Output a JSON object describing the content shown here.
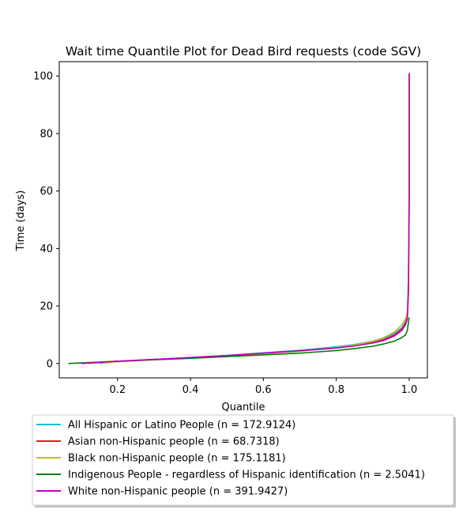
{
  "chart_data": {
    "type": "line",
    "title": "Wait time Quantile Plot for Dead Bird  requests (code SGV)",
    "xlabel": "Quantile",
    "ylabel": "Time (days)",
    "xlim": [
      0.04,
      1.05
    ],
    "ylim": [
      -5,
      105
    ],
    "xticks": [
      0.2,
      0.4,
      0.6,
      0.8,
      1.0
    ],
    "xtick_labels": [
      "0.2",
      "0.4",
      "0.6",
      "0.8",
      "1.0"
    ],
    "yticks": [
      0,
      20,
      40,
      60,
      80,
      100
    ],
    "ytick_labels": [
      "0",
      "20",
      "40",
      "60",
      "80",
      "100"
    ],
    "grid": false,
    "legend_position": "below",
    "series": [
      {
        "name": "All Hispanic or Latino People (n = 172.9124)",
        "color": "#17becf",
        "x": [
          0.15,
          0.2,
          0.3,
          0.4,
          0.5,
          0.6,
          0.7,
          0.8,
          0.85,
          0.9,
          0.93,
          0.96,
          0.98,
          0.99,
          0.995,
          0.998,
          1.0,
          1.0
        ],
        "y": [
          0,
          0.7,
          1.4,
          2.0,
          2.8,
          3.7,
          4.6,
          5.8,
          6.6,
          7.8,
          8.8,
          10.5,
          12.5,
          14.5,
          17,
          30,
          60,
          101
        ]
      },
      {
        "name": "Asian non-Hispanic people (n = 68.7318)",
        "color": "#e41a1c",
        "x": [
          0.1,
          0.2,
          0.3,
          0.4,
          0.5,
          0.6,
          0.7,
          0.8,
          0.85,
          0.9,
          0.93,
          0.96,
          0.98,
          0.99,
          0.995,
          0.998,
          1.0,
          1.0
        ],
        "y": [
          0,
          0.8,
          1.4,
          2.0,
          2.7,
          3.5,
          4.4,
          5.4,
          6.2,
          7.3,
          8.3,
          10.0,
          12.0,
          14.0,
          16,
          25,
          55,
          101
        ]
      },
      {
        "name": "Black non-Hispanic people (n = 175.1181)",
        "color": "#bcbd22",
        "x": [
          0.12,
          0.2,
          0.3,
          0.4,
          0.5,
          0.6,
          0.7,
          0.8,
          0.85,
          0.9,
          0.93,
          0.96,
          0.98,
          0.99,
          0.995,
          0.998,
          1.0,
          1.0
        ],
        "y": [
          0,
          0.6,
          1.3,
          1.9,
          2.6,
          3.4,
          4.3,
          5.5,
          6.4,
          7.7,
          9.0,
          11.0,
          13.5,
          15.5,
          18,
          30,
          60,
          101
        ]
      },
      {
        "name": "Indigenous People - regardless of Hispanic identification (n = 2.5041)",
        "color": "#008000",
        "x": [
          0.065,
          0.1,
          0.2,
          0.3,
          0.4,
          0.5,
          0.6,
          0.7,
          0.8,
          0.85,
          0.9,
          0.93,
          0.96,
          0.98,
          0.99,
          0.995,
          1.0,
          1.0
        ],
        "y": [
          0,
          0.2,
          0.8,
          1.3,
          1.8,
          2.4,
          3.0,
          3.6,
          4.5,
          5.2,
          6.0,
          6.8,
          7.8,
          9.0,
          10.0,
          11.5,
          16,
          16
        ]
      },
      {
        "name": "White non-Hispanic people (n = 391.9427)",
        "color": "#bf00bf",
        "x": [
          0.1,
          0.2,
          0.3,
          0.4,
          0.5,
          0.6,
          0.7,
          0.8,
          0.85,
          0.9,
          0.93,
          0.96,
          0.98,
          0.99,
          0.995,
          0.998,
          1.0,
          1.0
        ],
        "y": [
          0,
          0.8,
          1.4,
          2.1,
          2.8,
          3.6,
          4.4,
          5.4,
          6.1,
          7.1,
          8.0,
          9.6,
          11.5,
          13.5,
          15.5,
          25,
          55,
          101
        ]
      }
    ]
  }
}
